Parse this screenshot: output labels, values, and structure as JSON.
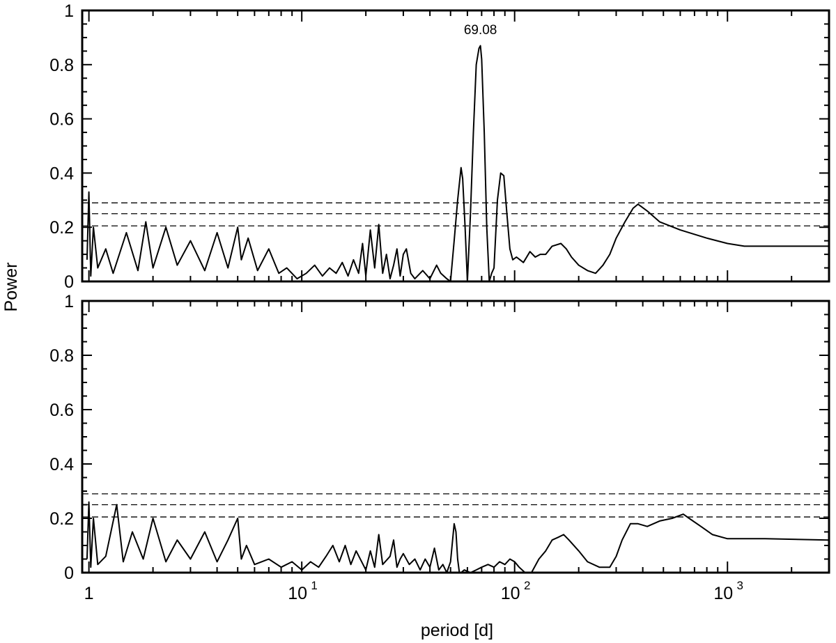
{
  "chart_data": [
    {
      "type": "line",
      "panel": "top",
      "xscale": "log",
      "xlim": [
        0.93,
        3000
      ],
      "ylim": [
        0,
        1
      ],
      "ylabel": "Power",
      "xlabel": "",
      "yticks": [
        "0",
        "0.2",
        "0.4",
        "0.6",
        "0.8",
        "1"
      ],
      "xticks": [
        "1",
        "10",
        "10",
        "10"
      ],
      "xtick_exponents": [
        "",
        "1",
        "2",
        "3"
      ],
      "annotation": {
        "text": "69.08",
        "x": 69.08,
        "y": 0.87
      },
      "reference_lines": [
        0.29,
        0.25,
        0.205
      ],
      "series": [
        {
          "x": [
            0.98,
            1.0,
            1.02,
            1.05,
            1.1,
            1.2,
            1.3,
            1.5,
            1.7,
            1.85,
            2.0,
            2.3,
            2.6,
            3.0,
            3.5,
            4.0,
            4.5,
            5.0,
            5.2,
            5.6,
            6.2,
            7.0,
            7.8,
            8.5,
            9.5,
            10.5,
            11.5,
            12.5,
            13.5,
            14.5,
            15.5,
            16.5,
            17.5,
            18.5,
            19.3,
            20.0,
            21.0,
            22.0,
            23.0,
            24.0,
            25.0,
            26.0,
            27.0,
            28.0,
            29.0,
            30.0,
            31.0,
            32.5,
            34.0,
            37.0,
            40.0,
            43.0,
            45.0,
            48.0,
            50.0,
            52.0,
            54.0,
            56.0,
            57.0,
            58.5,
            60.0,
            62.0,
            64.0,
            66.0,
            68.0,
            69.08,
            70.0,
            72.0,
            74.0,
            76.0,
            78.0,
            80.0,
            83.0,
            86.0,
            89.0,
            92.0,
            95.0,
            98.0,
            102.0,
            106.0,
            110.0,
            118.0,
            125.0,
            132.0,
            140.0,
            150.0,
            165.0,
            175.0,
            185.0,
            200.0,
            220.0,
            240.0,
            260.0,
            280.0,
            300.0,
            330.0,
            360.0,
            380.0,
            420.0,
            480.0,
            600.0,
            800.0,
            1000.0,
            1200.0,
            1500.0,
            2000.0,
            3000.0
          ],
          "y": [
            0.08,
            0.33,
            0.02,
            0.2,
            0.05,
            0.12,
            0.03,
            0.18,
            0.04,
            0.22,
            0.05,
            0.2,
            0.06,
            0.15,
            0.04,
            0.18,
            0.05,
            0.2,
            0.08,
            0.16,
            0.04,
            0.12,
            0.03,
            0.05,
            0.01,
            0.03,
            0.06,
            0.02,
            0.05,
            0.03,
            0.07,
            0.02,
            0.08,
            0.03,
            0.14,
            0.02,
            0.19,
            0.05,
            0.21,
            0.03,
            0.1,
            0.01,
            0.06,
            0.12,
            0.02,
            0.1,
            0.12,
            0.03,
            0.01,
            0.04,
            0.01,
            0.06,
            0.03,
            0.01,
            0.0,
            0.15,
            0.3,
            0.42,
            0.38,
            0.2,
            0.0,
            0.25,
            0.55,
            0.8,
            0.86,
            0.87,
            0.82,
            0.55,
            0.2,
            0.0,
            0.03,
            0.05,
            0.3,
            0.4,
            0.39,
            0.25,
            0.12,
            0.08,
            0.09,
            0.08,
            0.07,
            0.11,
            0.09,
            0.1,
            0.1,
            0.13,
            0.14,
            0.12,
            0.09,
            0.06,
            0.04,
            0.03,
            0.06,
            0.1,
            0.16,
            0.22,
            0.27,
            0.285,
            0.26,
            0.22,
            0.19,
            0.16,
            0.14,
            0.13,
            0.13,
            0.13,
            0.13
          ]
        }
      ]
    },
    {
      "type": "line",
      "panel": "bottom",
      "xscale": "log",
      "xlim": [
        0.93,
        3000
      ],
      "ylim": [
        0,
        1
      ],
      "ylabel": "",
      "xlabel": "period [d]",
      "yticks": [
        "0",
        "0.2",
        "0.4",
        "0.6",
        "0.8",
        "1"
      ],
      "xticks": [
        "1",
        "10",
        "10",
        "10"
      ],
      "xtick_exponents": [
        "",
        "1",
        "2",
        "3"
      ],
      "reference_lines": [
        0.29,
        0.25,
        0.205
      ],
      "series": [
        {
          "x": [
            0.98,
            1.0,
            1.02,
            1.05,
            1.1,
            1.2,
            1.35,
            1.45,
            1.6,
            1.8,
            2.0,
            2.3,
            2.6,
            3.0,
            3.5,
            4.0,
            4.5,
            5.0,
            5.2,
            5.5,
            6.0,
            7.0,
            8.0,
            9.0,
            10.0,
            11.0,
            12.0,
            13.0,
            14.0,
            15.0,
            16.0,
            17.0,
            18.0,
            20.0,
            21.0,
            22.0,
            23.0,
            24.0,
            26.0,
            27.0,
            28.0,
            29.0,
            30.0,
            32.0,
            34.0,
            36.0,
            38.0,
            40.0,
            42.0,
            44.0,
            46.0,
            48.0,
            50.0,
            52.0,
            53.0,
            54.0,
            55.0,
            56.0,
            58.0,
            62.0,
            66.0,
            70.0,
            75.0,
            80.0,
            85.0,
            90.0,
            95.0,
            100.0,
            105.0,
            112.0,
            120.0,
            130.0,
            140.0,
            150.0,
            160.0,
            170.0,
            180.0,
            200.0,
            220.0,
            250.0,
            280.0,
            300.0,
            320.0,
            350.0,
            380.0,
            420.0,
            480.0,
            550.0,
            620.0,
            660.0,
            750.0,
            850.0,
            1000.0,
            1500.0,
            3000.0
          ],
          "y": [
            0.05,
            0.26,
            0.02,
            0.2,
            0.03,
            0.06,
            0.25,
            0.04,
            0.15,
            0.05,
            0.2,
            0.04,
            0.12,
            0.05,
            0.15,
            0.04,
            0.12,
            0.2,
            0.05,
            0.1,
            0.03,
            0.05,
            0.02,
            0.04,
            0.01,
            0.04,
            0.02,
            0.06,
            0.1,
            0.04,
            0.1,
            0.03,
            0.08,
            0.01,
            0.08,
            0.02,
            0.14,
            0.03,
            0.06,
            0.12,
            0.02,
            0.05,
            0.07,
            0.03,
            0.05,
            0.01,
            0.05,
            0.02,
            0.09,
            0.01,
            0.03,
            0.0,
            0.04,
            0.18,
            0.15,
            0.05,
            0.0,
            0.0,
            0.01,
            0.0,
            0.01,
            0.02,
            0.03,
            0.02,
            0.04,
            0.03,
            0.05,
            0.04,
            0.02,
            0.0,
            0.0,
            0.05,
            0.08,
            0.12,
            0.13,
            0.14,
            0.12,
            0.08,
            0.04,
            0.02,
            0.02,
            0.06,
            0.12,
            0.18,
            0.18,
            0.17,
            0.19,
            0.2,
            0.215,
            0.2,
            0.17,
            0.14,
            0.125,
            0.125,
            0.12
          ]
        }
      ]
    }
  ]
}
